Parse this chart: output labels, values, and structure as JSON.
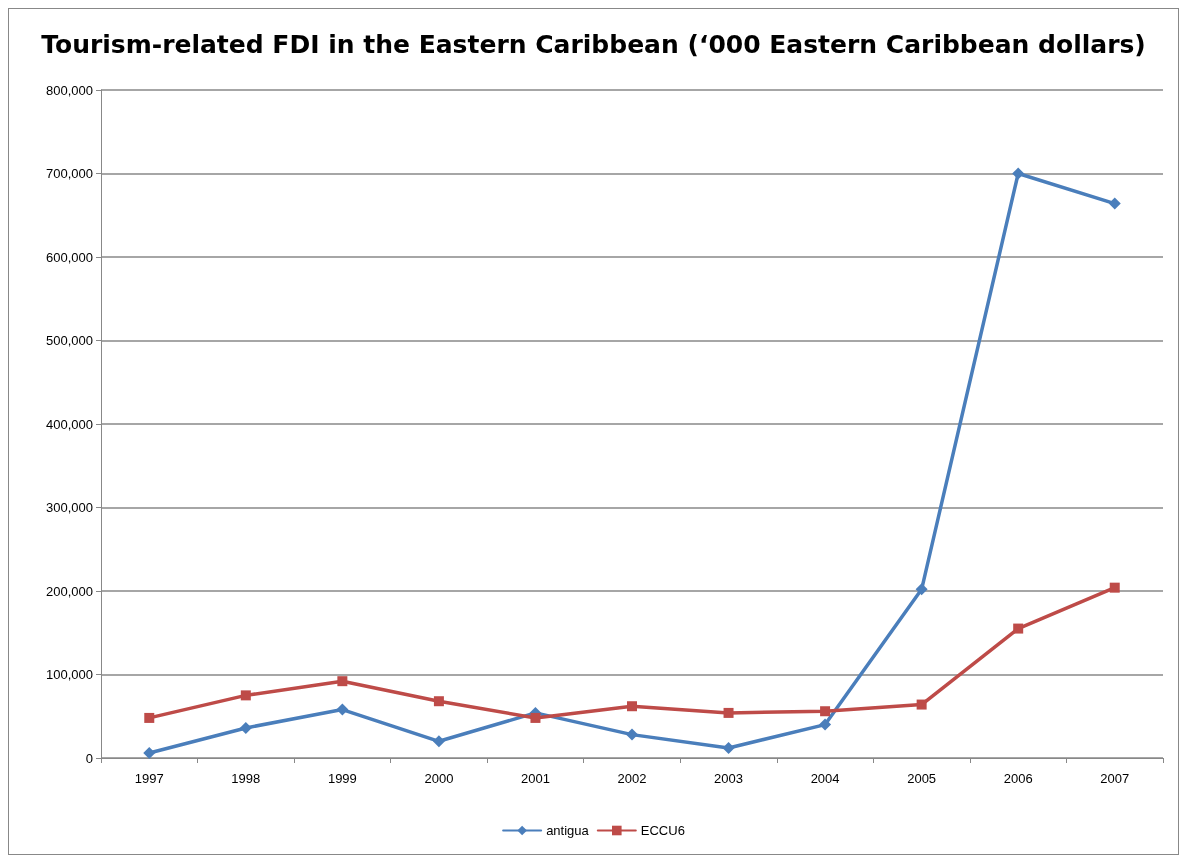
{
  "chart_data": {
    "type": "line",
    "title": "Tourism-related FDI in the Eastern Caribbean (‘000 Eastern Caribbean dollars)",
    "categories": [
      "1997",
      "1998",
      "1999",
      "2000",
      "2001",
      "2002",
      "2003",
      "2004",
      "2005",
      "2006",
      "2007"
    ],
    "series": [
      {
        "name": "antigua",
        "color": "#4a7ebb",
        "marker": "diamond",
        "values": [
          6000,
          36000,
          58000,
          20000,
          54000,
          28000,
          12000,
          40000,
          202000,
          700000,
          664000
        ]
      },
      {
        "name": "ECCU6",
        "color": "#be4b48",
        "marker": "square",
        "values": [
          48000,
          75000,
          92000,
          68000,
          48000,
          62000,
          54000,
          56000,
          64000,
          155000,
          204000
        ]
      }
    ],
    "ylim": [
      0,
      800000
    ],
    "yticks": [
      0,
      {
        "value": 100000,
        "label": "100,000"
      },
      {
        "value": 200000,
        "label": "200,000"
      },
      {
        "value": 300000,
        "label": "300,000"
      },
      {
        "value": 400000,
        "label": "400,000"
      },
      {
        "value": 500000,
        "label": "500,000"
      },
      {
        "value": 600000,
        "label": "600,000"
      },
      {
        "value": 700000,
        "label": "700,000"
      },
      {
        "value": 800000,
        "label": "800,000"
      }
    ],
    "grid": "y",
    "legend": "bottom"
  }
}
